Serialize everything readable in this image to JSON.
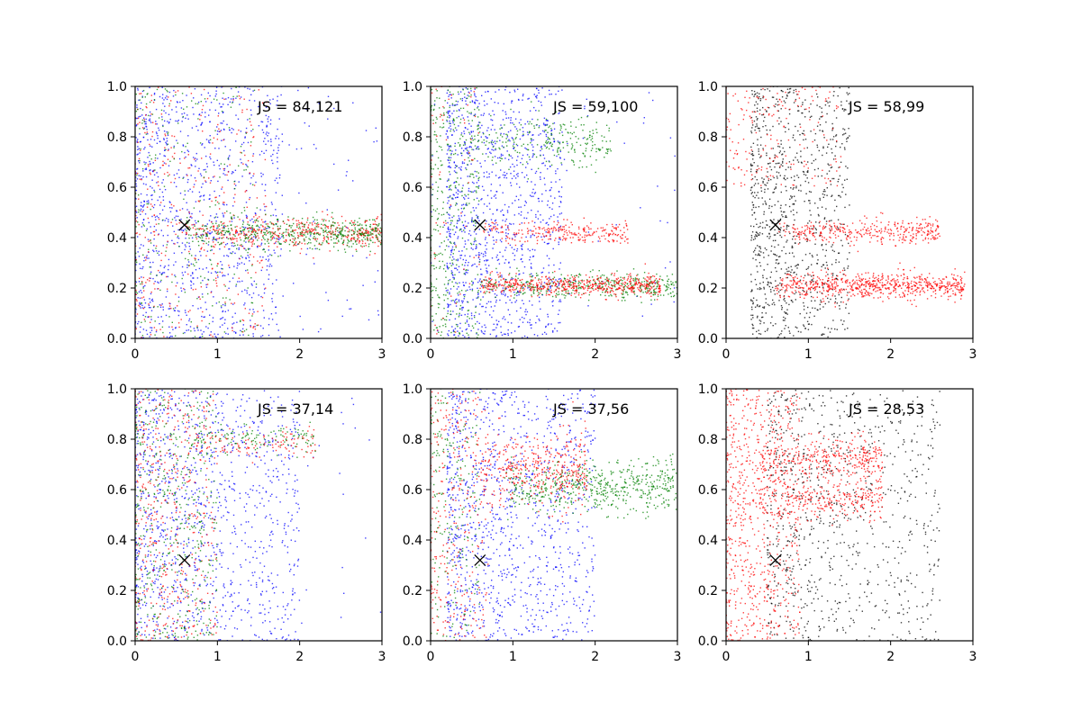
{
  "chart_data": [
    {
      "type": "scatter",
      "annotation": "JS = 84,121",
      "xlim": [
        0,
        3
      ],
      "ylim": [
        0,
        1
      ],
      "xticks": [
        "0",
        "1",
        "2",
        "3"
      ],
      "yticks": [
        "0.0",
        "0.2",
        "0.4",
        "0.6",
        "0.8",
        "1.0"
      ],
      "marker": {
        "x": 0.6,
        "y": 0.45,
        "symbol": "x",
        "color": "#000000"
      },
      "series": [
        {
          "color": "#0000ff",
          "clusters": [
            {
              "count": 950,
              "x": [
                0,
                1.8
              ],
              "y": [
                0,
                1
              ]
            },
            {
              "count": 180,
              "x": [
                0,
                3
              ],
              "y": [
                0,
                1
              ]
            }
          ]
        },
        {
          "color": "#ff0000",
          "clusters": [
            {
              "count": 450,
              "x": [
                0.6,
                3
              ],
              "y": [
                0.42,
                0.03
              ]
            },
            {
              "count": 350,
              "x": [
                0,
                1.6
              ],
              "y": [
                0,
                1
              ]
            }
          ]
        },
        {
          "color": "#008000",
          "clusters": [
            {
              "count": 500,
              "x": [
                0.6,
                3
              ],
              "y": [
                0.42,
                0.03
              ]
            },
            {
              "count": 250,
              "x": [
                0,
                1.5
              ],
              "y": [
                0,
                1
              ]
            }
          ]
        }
      ]
    },
    {
      "type": "scatter",
      "annotation": "JS = 59,100",
      "xlim": [
        0,
        3
      ],
      "ylim": [
        0,
        1
      ],
      "xticks": [
        "0",
        "1",
        "2",
        "3"
      ],
      "yticks": [
        "0.0",
        "0.2",
        "0.4",
        "0.6",
        "0.8",
        "1.0"
      ],
      "marker": {
        "x": 0.6,
        "y": 0.45,
        "symbol": "x",
        "color": "#000000"
      },
      "series": [
        {
          "color": "#0000ff",
          "clusters": [
            {
              "count": 1100,
              "x": [
                0.2,
                1.6
              ],
              "y": [
                0,
                1
              ]
            },
            {
              "count": 120,
              "x": [
                0,
                3
              ],
              "y": [
                0,
                1
              ]
            }
          ]
        },
        {
          "color": "#008000",
          "clusters": [
            {
              "count": 400,
              "x": [
                0,
                0.6
              ],
              "y": [
                0,
                1
              ]
            },
            {
              "count": 250,
              "x": [
                0.5,
                2.2
              ],
              "y": [
                0.78,
                0.05
              ]
            },
            {
              "count": 400,
              "x": [
                0.6,
                3
              ],
              "y": [
                0.21,
                0.025
              ]
            }
          ]
        },
        {
          "color": "#ff0000",
          "clusters": [
            {
              "count": 250,
              "x": [
                0.6,
                2.4
              ],
              "y": [
                0.42,
                0.02
              ]
            },
            {
              "count": 550,
              "x": [
                0.6,
                2.8
              ],
              "y": [
                0.21,
                0.02
              ]
            },
            {
              "count": 60,
              "x": [
                0,
                0.6
              ],
              "y": [
                0,
                1
              ]
            }
          ]
        }
      ]
    },
    {
      "type": "scatter",
      "annotation": "JS = 58,99",
      "xlim": [
        0,
        3
      ],
      "ylim": [
        0,
        1
      ],
      "xticks": [
        "0",
        "1",
        "2",
        "3"
      ],
      "yticks": [
        "0.0",
        "0.2",
        "0.4",
        "0.6",
        "0.8",
        "1.0"
      ],
      "marker": {
        "x": 0.6,
        "y": 0.45,
        "symbol": "x",
        "color": "#000000"
      },
      "series": [
        {
          "color": "#000000",
          "clusters": [
            {
              "count": 950,
              "x": [
                0.3,
                1.5
              ],
              "y": [
                0,
                1
              ]
            }
          ]
        },
        {
          "color": "#ff0000",
          "clusters": [
            {
              "count": 350,
              "x": [
                0.6,
                2.6
              ],
              "y": [
                0.42,
                0.025
              ]
            },
            {
              "count": 700,
              "x": [
                0.6,
                2.9
              ],
              "y": [
                0.21,
                0.025
              ]
            },
            {
              "count": 180,
              "x": [
                0,
                1.4
              ],
              "y": [
                0.6,
                1
              ]
            }
          ]
        }
      ]
    },
    {
      "type": "scatter",
      "annotation": "JS = 37,14",
      "xlim": [
        0,
        3
      ],
      "ylim": [
        0,
        1
      ],
      "xticks": [
        "0",
        "1",
        "2",
        "3"
      ],
      "yticks": [
        "0.0",
        "0.2",
        "0.4",
        "0.6",
        "0.8",
        "1.0"
      ],
      "marker": {
        "x": 0.6,
        "y": 0.32,
        "symbol": "x",
        "color": "#000000"
      },
      "series": [
        {
          "color": "#0000ff",
          "clusters": [
            {
              "count": 1100,
              "x": [
                0,
                2
              ],
              "y": [
                0,
                1
              ]
            },
            {
              "count": 80,
              "x": [
                0,
                3
              ],
              "y": [
                0,
                1
              ]
            }
          ]
        },
        {
          "color": "#ff0000",
          "clusters": [
            {
              "count": 450,
              "x": [
                0,
                1
              ],
              "y": [
                0,
                1
              ]
            },
            {
              "count": 120,
              "x": [
                0.6,
                2.2
              ],
              "y": [
                0.78,
                0.03
              ]
            }
          ]
        },
        {
          "color": "#008000",
          "clusters": [
            {
              "count": 450,
              "x": [
                0,
                1
              ],
              "y": [
                0,
                1
              ]
            },
            {
              "count": 120,
              "x": [
                0.6,
                2.2
              ],
              "y": [
                0.8,
                0.03
              ]
            }
          ]
        }
      ]
    },
    {
      "type": "scatter",
      "annotation": "JS = 37,56",
      "xlim": [
        0,
        3
      ],
      "ylim": [
        0,
        1
      ],
      "xticks": [
        "0",
        "1",
        "2",
        "3"
      ],
      "yticks": [
        "0.0",
        "0.2",
        "0.4",
        "0.6",
        "0.8",
        "1.0"
      ],
      "marker": {
        "x": 0.6,
        "y": 0.32,
        "symbol": "x",
        "color": "#000000"
      },
      "series": [
        {
          "color": "#0000ff",
          "clusters": [
            {
              "count": 1100,
              "x": [
                0.2,
                2
              ],
              "y": [
                0,
                1
              ]
            }
          ]
        },
        {
          "color": "#008000",
          "clusters": [
            {
              "count": 550,
              "x": [
                0.9,
                3
              ],
              "y": [
                0.61,
                0.05
              ]
            },
            {
              "count": 200,
              "x": [
                0,
                0.6
              ],
              "y": [
                0,
                1
              ]
            }
          ]
        },
        {
          "color": "#ff0000",
          "clusters": [
            {
              "count": 400,
              "x": [
                0.6,
                1.9
              ],
              "y": [
                0.68,
                0.07
              ]
            },
            {
              "count": 300,
              "x": [
                0,
                0.7
              ],
              "y": [
                0,
                1
              ]
            }
          ]
        }
      ]
    },
    {
      "type": "scatter",
      "annotation": "JS = 28,53",
      "xlim": [
        0,
        3
      ],
      "ylim": [
        0,
        1
      ],
      "xticks": [
        "0",
        "1",
        "2",
        "3"
      ],
      "yticks": [
        "0.0",
        "0.2",
        "0.4",
        "0.6",
        "0.8",
        "1.0"
      ],
      "marker": {
        "x": 0.6,
        "y": 0.32,
        "symbol": "x",
        "color": "#000000"
      },
      "series": [
        {
          "color": "#000000",
          "clusters": [
            {
              "count": 850,
              "x": [
                0.5,
                2.6
              ],
              "y": [
                0,
                1
              ]
            }
          ]
        },
        {
          "color": "#ff0000",
          "clusters": [
            {
              "count": 700,
              "x": [
                0,
                0.9
              ],
              "y": [
                0,
                1
              ]
            },
            {
              "count": 350,
              "x": [
                0.4,
                1.9
              ],
              "y": [
                0.72,
                0.04
              ]
            },
            {
              "count": 300,
              "x": [
                0.4,
                1.9
              ],
              "y": [
                0.56,
                0.04
              ]
            }
          ]
        }
      ]
    }
  ]
}
